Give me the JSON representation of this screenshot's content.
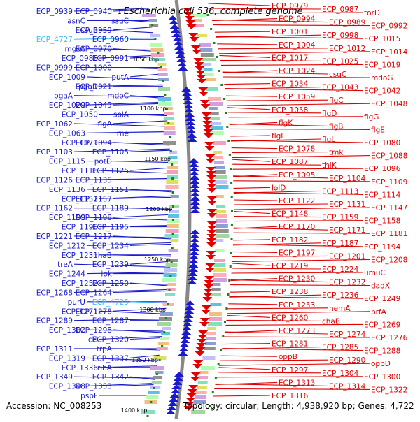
{
  "title": "Escherichia coli 536, complete genome",
  "title_prefix": "1",
  "footer": {
    "accession": "Accession: NC_008253",
    "summary": "Topology: circular; Length: 4,938,920 bp; Genes: 4,722"
  },
  "colors": {
    "forward": "#1a1acc",
    "reverse": "#e00000",
    "rna": "#40c0ff",
    "backbone": "#888888",
    "tick": "#118811"
  },
  "icons": {
    "forward_gene_arrow": "blue-arrow",
    "reverse_gene_arrow": "red-arrow"
  },
  "scale_labels": [
    "1050 kbp",
    "1100 kbp",
    "1150 kbp",
    "1200 kbp",
    "1250 kbp",
    "1300 kbp",
    "1350 kbp",
    "1400 kbp"
  ],
  "left_labels": [
    "ECP_0939",
    "ECP_0940",
    "asnC",
    "ssuC",
    "ssuB",
    "ECP_0959",
    "ECP_4727",
    "ECP_0960",
    "mgsA",
    "ECP_0970",
    "ECP_0986",
    "ECP_0991",
    "ECP_0999",
    "ECP_1000",
    "ECP_1009",
    "putA",
    "pgaD",
    "ECP_1021",
    "pgaA",
    "mdoC",
    "ECP_1029",
    "ECP_1045",
    "ECP_1050",
    "solA",
    "ECP_1062",
    "flgA",
    "ECP_1063",
    "rne",
    "ECP_1079",
    "ECP_1094",
    "ECP_1103",
    "ECP_1105",
    "ECP_1115",
    "potD",
    "ECP_1116",
    "ECP_1125",
    "ECP_1126",
    "ECP_1135",
    "ECP_1136",
    "ECP_1151",
    "ECP_1152",
    "ECP_1157",
    "ECP_1162",
    "ECP_1189",
    "ECP_1199",
    "ECP_1198",
    "ECP_1196",
    "ECP_1195",
    "ECP_1221",
    "ECP_1217",
    "ECP_1212",
    "ECP_1234",
    "ECP_1231",
    "nhaB",
    "treA",
    "ECP_1239",
    "ECP_1244",
    "ipk",
    "ECP_1252",
    "ECP_1250",
    "ECP_1268",
    "ECP_1264",
    "purU",
    "ECP_4725",
    "ECP_1271",
    "ECP_1278",
    "ECP_1289",
    "ECP_1287",
    "ECP_1302",
    "ECP_1298",
    "cls",
    "ECP_1320",
    "ECP_1311",
    "trpA",
    "ECP_1319",
    "ECP_1337",
    "ECP_1336",
    "ribA",
    "ECP_1349",
    "ECP_1342",
    "ECP_1348",
    "ECP_1353",
    "pspF"
  ],
  "right_labels": [
    "ECP_0979",
    "ECP_0987",
    "torD",
    "ECP_0994",
    "ECP_0989",
    "ECP_0992",
    "ECP_1001",
    "ECP_0998",
    "ECP_1015",
    "ECP_1004",
    "ECP_1012",
    "ECP_1014",
    "ECP_1017",
    "ECP_1025",
    "ECP_1019",
    "ECP_1024",
    "csgC",
    "mdoG",
    "ECP_1034",
    "ECP_1043",
    "ECP_1042",
    "ECP_1059",
    "flgC",
    "ECP_1048",
    "ECP_1058",
    "flgD",
    "flgG",
    "flgK",
    "flgB",
    "flgE",
    "flgI",
    "flgL",
    "ECP_1080",
    "ECP_1078",
    "tmk",
    "ECP_1088",
    "ECP_1087",
    "thiK",
    "ECP_1096",
    "ECP_1095",
    "ECP_1104",
    "ECP_1109",
    "lolD",
    "ECP_1113",
    "ECP_1114",
    "ECP_1122",
    "ECP_1131",
    "ECP_1147",
    "ECP_1148",
    "ECP_1159",
    "ECP_1158",
    "ECP_1170",
    "ECP_1171",
    "ECP_1181",
    "ECP_1182",
    "ECP_1187",
    "ECP_1194",
    "ECP_1197",
    "ECP_1201",
    "ECP_1208",
    "ECP_1219",
    "ECP_1224",
    "umuC",
    "ECP_1230",
    "ECP_1232",
    "dadX",
    "ECP_1238",
    "ECP_1236",
    "ECP_1249",
    "ECP_1253",
    "hemA",
    "prfA",
    "ECP_1260",
    "chaB",
    "ECP_1269",
    "ECP_1273",
    "ECP_1274",
    "ECP_1276",
    "ECP_1281",
    "ECP_1285",
    "ECP_1288",
    "oppB",
    "ECP_1290",
    "oppD",
    "ECP_1297",
    "ECP_1304",
    "ECP_1300",
    "ECP_1313",
    "ECP_1314",
    "ECP_1322",
    "ECP_1316"
  ]
}
